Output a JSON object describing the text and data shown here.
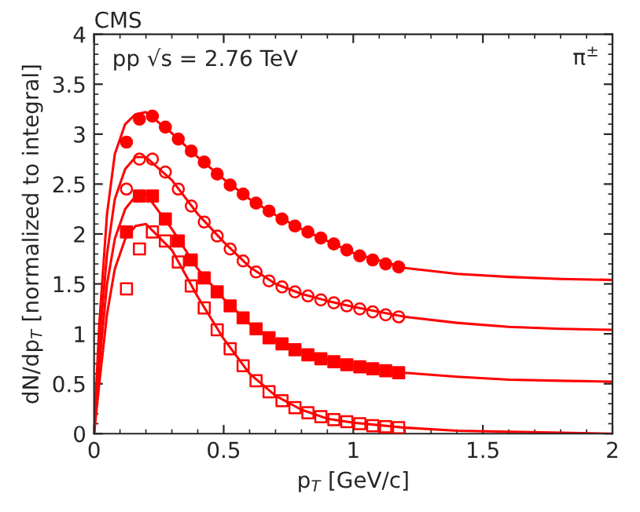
{
  "chart_data": {
    "type": "scatter",
    "title": "CMS",
    "xlabel": "p$_{T}$ [GeV/c]",
    "ylabel": "dN/dp$_{T}$ [normalized to integral]",
    "annotations": [
      "pp √s = 2.76 TeV",
      "π$^{±}$"
    ],
    "x": [
      0.125,
      0.175,
      0.225,
      0.275,
      0.325,
      0.375,
      0.425,
      0.475,
      0.525,
      0.575,
      0.625,
      0.675,
      0.725,
      0.775,
      0.825,
      0.875,
      0.925,
      0.975,
      1.025,
      1.075,
      1.125,
      1.175
    ],
    "series": [
      {
        "type": "line",
        "color": "#ff0000",
        "marker": "none",
        "x": [
          0,
          0.02,
          0.05,
          0.08,
          0.12,
          0.16,
          0.2,
          0.3,
          0.4,
          0.5,
          0.6,
          0.7,
          0.8,
          0.9,
          1.0,
          1.2,
          1.4,
          1.6,
          1.8,
          2.0
        ],
        "values": [
          0,
          1.1,
          2.2,
          2.8,
          3.1,
          3.2,
          3.22,
          3.01,
          2.77,
          2.55,
          2.35,
          2.19,
          2.05,
          1.93,
          1.81,
          1.66,
          1.6,
          1.57,
          1.55,
          1.54
        ]
      },
      {
        "type": "line",
        "color": "#ff0000",
        "marker": "none",
        "x": [
          0,
          0.02,
          0.05,
          0.08,
          0.12,
          0.16,
          0.2,
          0.3,
          0.4,
          0.5,
          0.6,
          0.7,
          0.8,
          0.9,
          1.0,
          1.2,
          1.4,
          1.6,
          1.8,
          2.0
        ],
        "values": [
          0,
          0.9,
          1.8,
          2.35,
          2.65,
          2.77,
          2.77,
          2.54,
          2.2,
          1.92,
          1.67,
          1.5,
          1.4,
          1.33,
          1.27,
          1.17,
          1.11,
          1.07,
          1.05,
          1.04
        ]
      },
      {
        "type": "line",
        "color": "#ff0000",
        "marker": "none",
        "x": [
          0,
          0.02,
          0.05,
          0.08,
          0.12,
          0.16,
          0.2,
          0.3,
          0.4,
          0.5,
          0.6,
          0.7,
          0.8,
          0.9,
          1.0,
          1.2,
          1.4,
          1.6,
          1.8,
          2.0
        ],
        "values": [
          0,
          0.7,
          1.5,
          1.95,
          2.25,
          2.38,
          2.4,
          2.05,
          1.65,
          1.35,
          1.1,
          0.93,
          0.82,
          0.74,
          0.68,
          0.61,
          0.57,
          0.54,
          0.53,
          0.52
        ]
      },
      {
        "type": "line",
        "color": "#ff0000",
        "marker": "none",
        "x": [
          0,
          0.02,
          0.05,
          0.08,
          0.12,
          0.16,
          0.2,
          0.3,
          0.4,
          0.5,
          0.6,
          0.7,
          0.8,
          0.9,
          1.0,
          1.2,
          1.4,
          1.6,
          1.8,
          2.0
        ],
        "values": [
          0,
          0.5,
          1.2,
          1.65,
          1.95,
          2.08,
          2.1,
          1.84,
          1.37,
          0.95,
          0.6,
          0.38,
          0.24,
          0.15,
          0.11,
          0.06,
          0.03,
          0.02,
          0.01,
          0.0
        ]
      },
      {
        "color": "#ff0000",
        "marker": "circle",
        "values": [
          2.92,
          3.15,
          3.18,
          3.07,
          2.95,
          2.83,
          2.72,
          2.6,
          2.49,
          2.4,
          2.31,
          2.23,
          2.15,
          2.08,
          2.02,
          1.96,
          1.9,
          1.84,
          1.78,
          1.74,
          1.7,
          1.67
        ]
      },
      {
        "color": "#ff0000",
        "marker": "circle",
        "values": [
          2.45,
          2.75,
          2.75,
          2.62,
          2.45,
          2.28,
          2.12,
          1.98,
          1.85,
          1.73,
          1.62,
          1.53,
          1.47,
          1.42,
          1.38,
          1.34,
          1.31,
          1.28,
          1.25,
          1.22,
          1.19,
          1.17
        ]
      },
      {
        "color": "#ff0000",
        "marker": "square",
        "values": [
          2.02,
          2.38,
          2.38,
          2.15,
          1.93,
          1.74,
          1.56,
          1.42,
          1.28,
          1.16,
          1.05,
          0.96,
          0.9,
          0.84,
          0.79,
          0.75,
          0.72,
          0.69,
          0.67,
          0.65,
          0.63,
          0.61
        ]
      },
      {
        "color": "#ff0000",
        "marker": "square",
        "values": [
          1.45,
          1.85,
          2.02,
          1.93,
          1.72,
          1.48,
          1.26,
          1.04,
          0.85,
          0.68,
          0.53,
          0.42,
          0.33,
          0.26,
          0.21,
          0.17,
          0.14,
          0.12,
          0.1,
          0.08,
          0.07,
          0.06
        ]
      }
    ],
    "xlim": [
      0,
      2
    ],
    "ylim": [
      0,
      4
    ],
    "xticks": [
      0,
      0.5,
      1,
      1.5,
      2
    ],
    "yticks": [
      0,
      0.5,
      1,
      1.5,
      2,
      2.5,
      3,
      3.5,
      4
    ],
    "grid": false,
    "legend": false
  }
}
